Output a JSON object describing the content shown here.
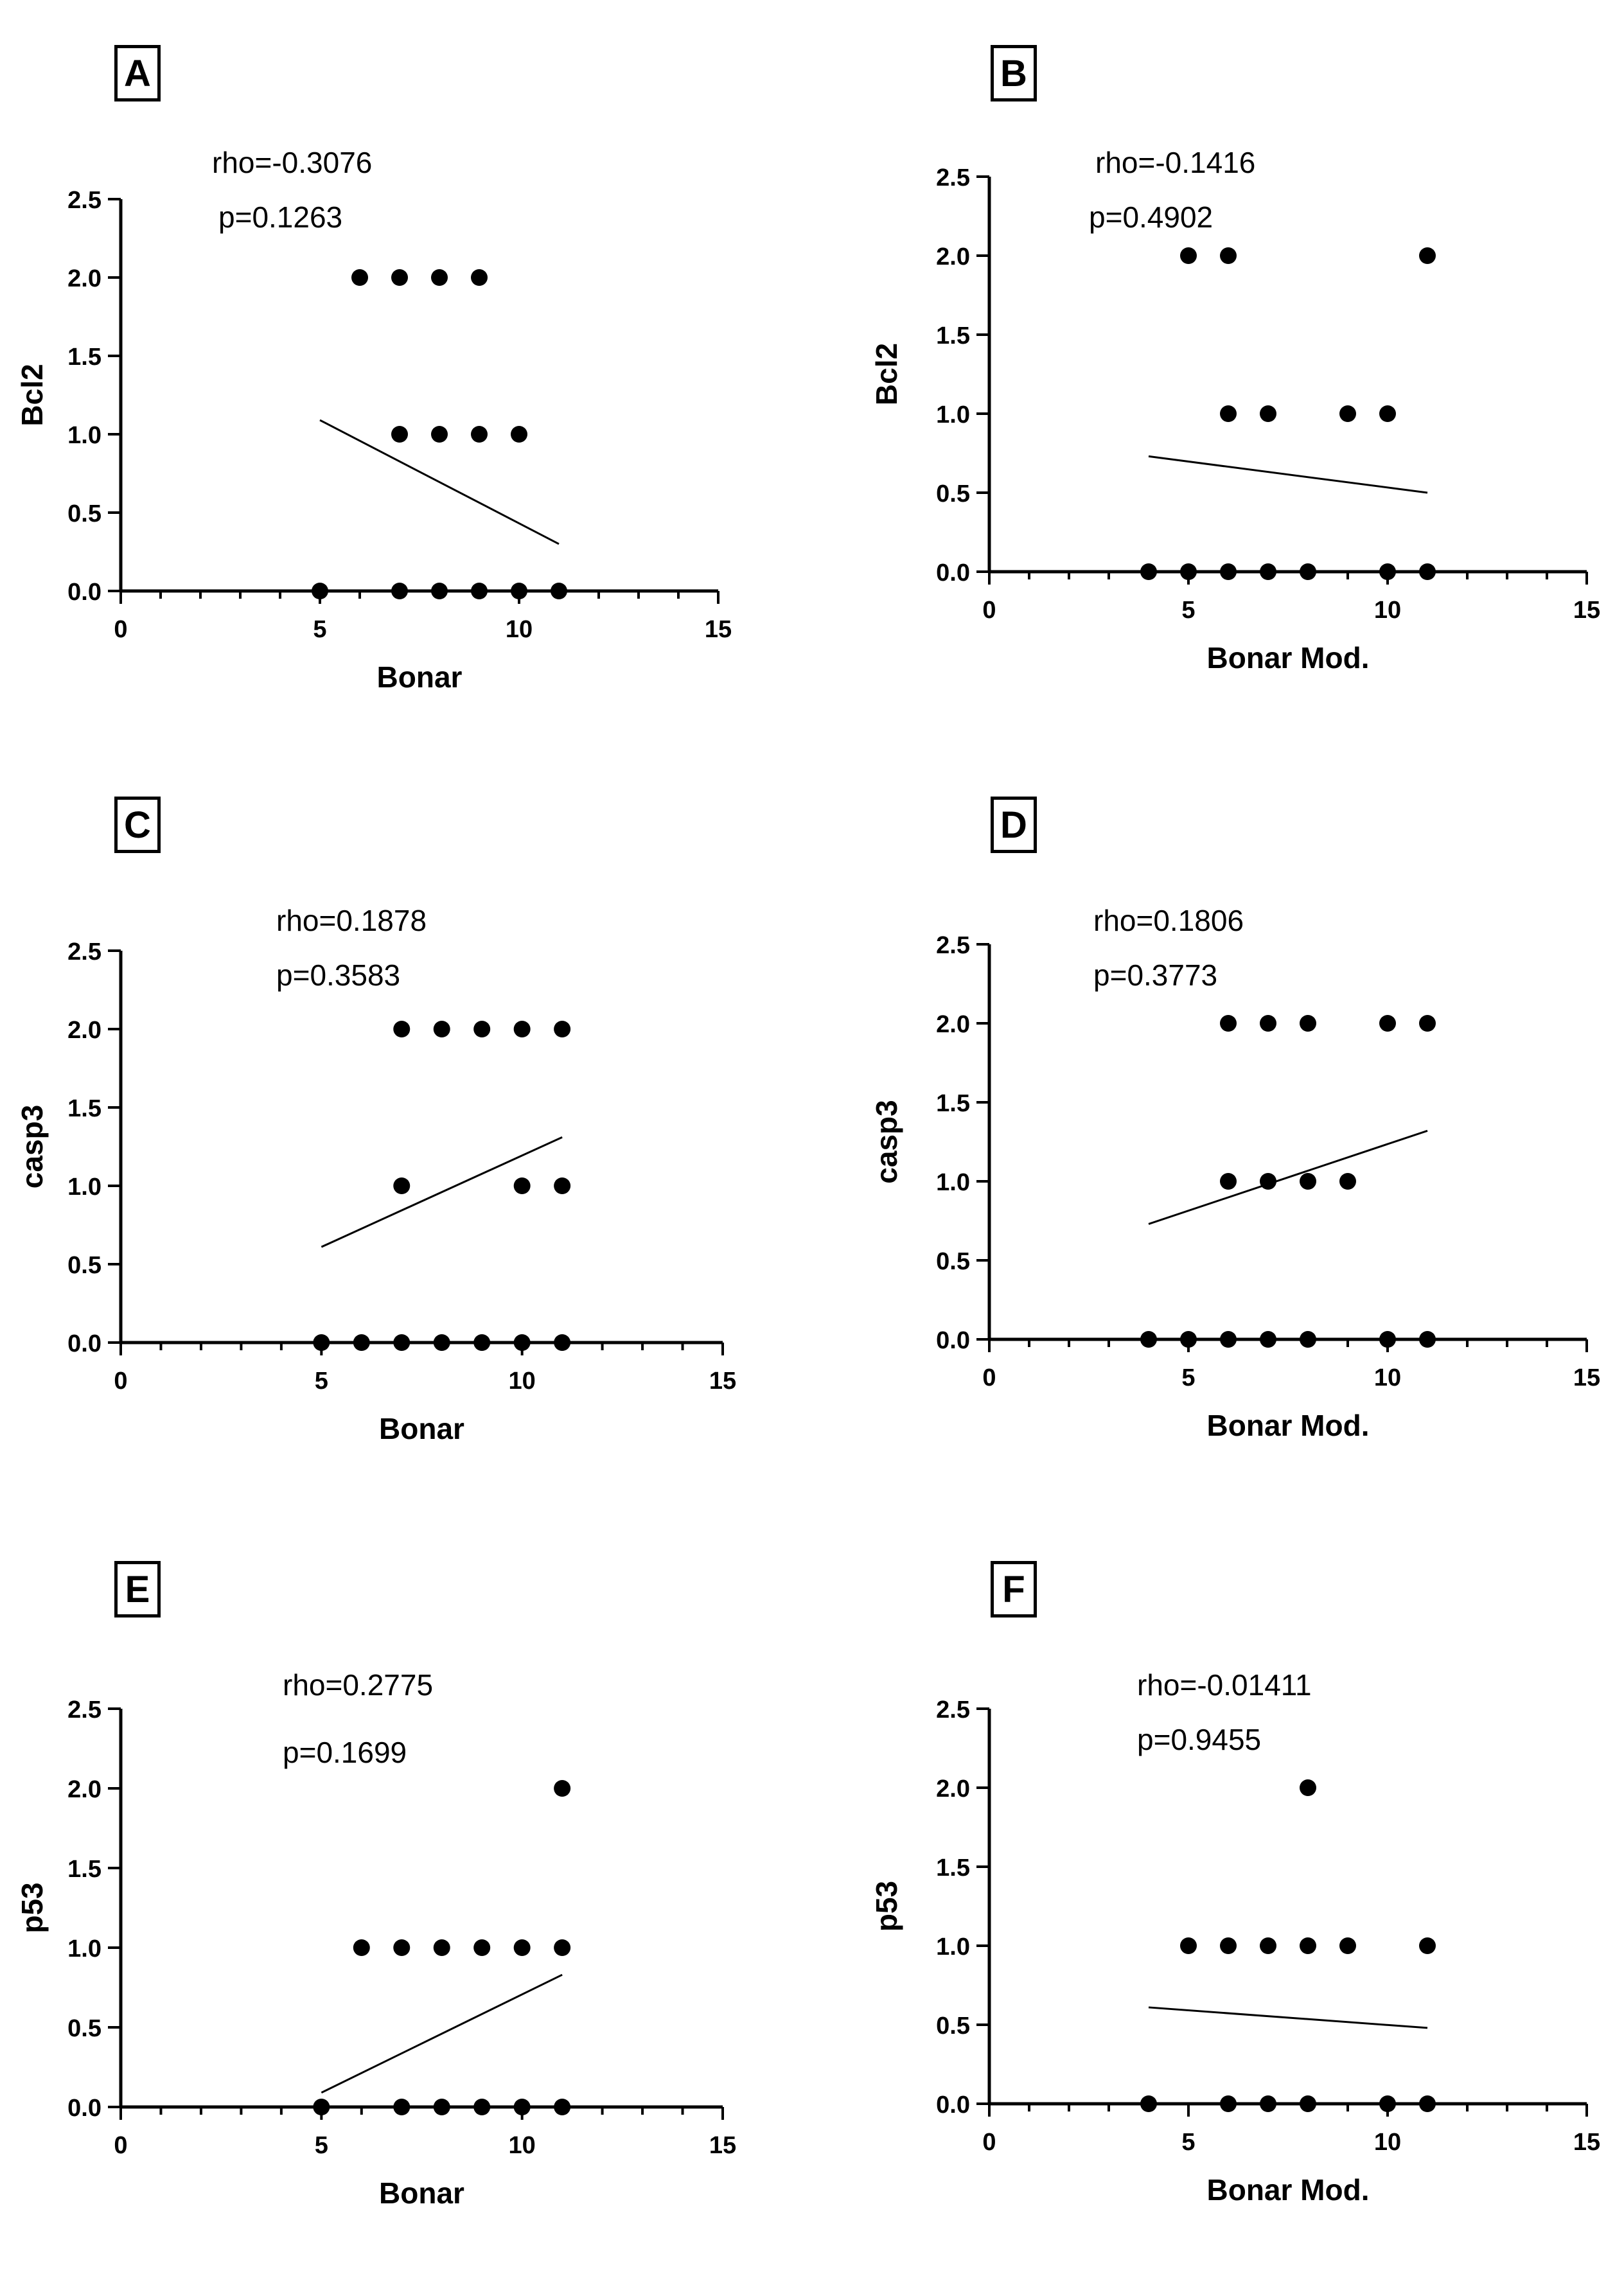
{
  "chart_data": [
    {
      "panel": "A",
      "type": "scatter",
      "stats": {
        "rho": "rho=-0.3076",
        "p": "p=0.1263"
      },
      "xlabel": "Bonar",
      "ylabel": "Bcl2",
      "xlim": [
        0,
        15
      ],
      "ylim": [
        0,
        2.5
      ],
      "xticks": [
        "0",
        "5",
        "10",
        "15"
      ],
      "yticks": [
        "0.0",
        "0.5",
        "1.0",
        "1.5",
        "2.0",
        "2.5"
      ],
      "x": [
        6,
        7,
        8,
        9,
        7,
        8,
        9,
        10,
        5,
        7,
        8,
        9,
        10,
        11
      ],
      "y": [
        2,
        2,
        2,
        2,
        1,
        1,
        1,
        1,
        0,
        0,
        0,
        0,
        0,
        0
      ],
      "fit": {
        "x": [
          5,
          11
        ],
        "y": [
          1.09,
          0.3
        ]
      }
    },
    {
      "panel": "B",
      "type": "scatter",
      "stats": {
        "rho": "rho=-0.1416",
        "p": "p=0.4902"
      },
      "xlabel": "Bonar Mod.",
      "ylabel": "Bcl2",
      "xlim": [
        0,
        15
      ],
      "ylim": [
        0,
        2.5
      ],
      "xticks": [
        "0",
        "5",
        "10",
        "15"
      ],
      "yticks": [
        "0.0",
        "0.5",
        "1.0",
        "1.5",
        "2.0",
        "2.5"
      ],
      "x": [
        5,
        6,
        11,
        6,
        7,
        9,
        10,
        4,
        5,
        6,
        7,
        8,
        10,
        11
      ],
      "y": [
        2,
        2,
        2,
        1,
        1,
        1,
        1,
        0,
        0,
        0,
        0,
        0,
        0,
        0
      ],
      "fit": {
        "x": [
          4,
          11
        ],
        "y": [
          0.73,
          0.5
        ]
      }
    },
    {
      "panel": "C",
      "type": "scatter",
      "stats": {
        "rho": "rho=0.1878",
        "p": "p=0.3583"
      },
      "xlabel": "Bonar",
      "ylabel": "casp3",
      "xlim": [
        0,
        15
      ],
      "ylim": [
        0,
        2.5
      ],
      "xticks": [
        "0",
        "5",
        "10",
        "15"
      ],
      "yticks": [
        "0.0",
        "0.5",
        "1.0",
        "1.5",
        "2.0",
        "2.5"
      ],
      "x": [
        7,
        8,
        9,
        10,
        11,
        7,
        10,
        11,
        5,
        6,
        7,
        8,
        9,
        10,
        11
      ],
      "y": [
        2,
        2,
        2,
        2,
        2,
        1,
        1,
        1,
        0,
        0,
        0,
        0,
        0,
        0,
        0
      ],
      "fit": {
        "x": [
          5,
          11
        ],
        "y": [
          0.61,
          1.31
        ]
      }
    },
    {
      "panel": "D",
      "type": "scatter",
      "stats": {
        "rho": "rho=0.1806",
        "p": "p=0.3773"
      },
      "xlabel": "Bonar Mod.",
      "ylabel": "casp3",
      "xlim": [
        0,
        15
      ],
      "ylim": [
        0,
        2.5
      ],
      "xticks": [
        "0",
        "5",
        "10",
        "15"
      ],
      "yticks": [
        "0.0",
        "0.5",
        "1.0",
        "1.5",
        "2.0",
        "2.5"
      ],
      "x": [
        6,
        7,
        8,
        10,
        11,
        6,
        7,
        8,
        9,
        4,
        5,
        6,
        7,
        8,
        10,
        11
      ],
      "y": [
        2,
        2,
        2,
        2,
        2,
        1,
        1,
        1,
        1,
        0,
        0,
        0,
        0,
        0,
        0,
        0
      ],
      "fit": {
        "x": [
          4,
          11
        ],
        "y": [
          0.73,
          1.32
        ]
      }
    },
    {
      "panel": "E",
      "type": "scatter",
      "stats": {
        "rho": "rho=0.2775",
        "p": "p=0.1699"
      },
      "xlabel": "Bonar",
      "ylabel": "p53",
      "xlim": [
        0,
        15
      ],
      "ylim": [
        0,
        2.5
      ],
      "xticks": [
        "0",
        "5",
        "10",
        "15"
      ],
      "yticks": [
        "0.0",
        "0.5",
        "1.0",
        "1.5",
        "2.0",
        "2.5"
      ],
      "x": [
        11,
        6,
        7,
        8,
        9,
        10,
        11,
        5,
        7,
        8,
        9,
        10,
        11
      ],
      "y": [
        2,
        1,
        1,
        1,
        1,
        1,
        1,
        0,
        0,
        0,
        0,
        0,
        0
      ],
      "fit": {
        "x": [
          5,
          11
        ],
        "y": [
          0.09,
          0.83
        ]
      }
    },
    {
      "panel": "F",
      "type": "scatter",
      "stats": {
        "rho": "rho=-0.01411",
        "p": "p=0.9455"
      },
      "xlabel": "Bonar Mod.",
      "ylabel": "p53",
      "xlim": [
        0,
        15
      ],
      "ylim": [
        0,
        2.5
      ],
      "xticks": [
        "0",
        "5",
        "10",
        "15"
      ],
      "yticks": [
        "0.0",
        "0.5",
        "1.0",
        "1.5",
        "2.0",
        "2.5"
      ],
      "x": [
        8,
        5,
        6,
        7,
        8,
        9,
        11,
        4,
        6,
        7,
        8,
        10,
        11
      ],
      "y": [
        2,
        1,
        1,
        1,
        1,
        1,
        1,
        0,
        0,
        0,
        0,
        0,
        0
      ],
      "fit": {
        "x": [
          4,
          11
        ],
        "y": [
          0.61,
          0.48
        ]
      }
    }
  ]
}
